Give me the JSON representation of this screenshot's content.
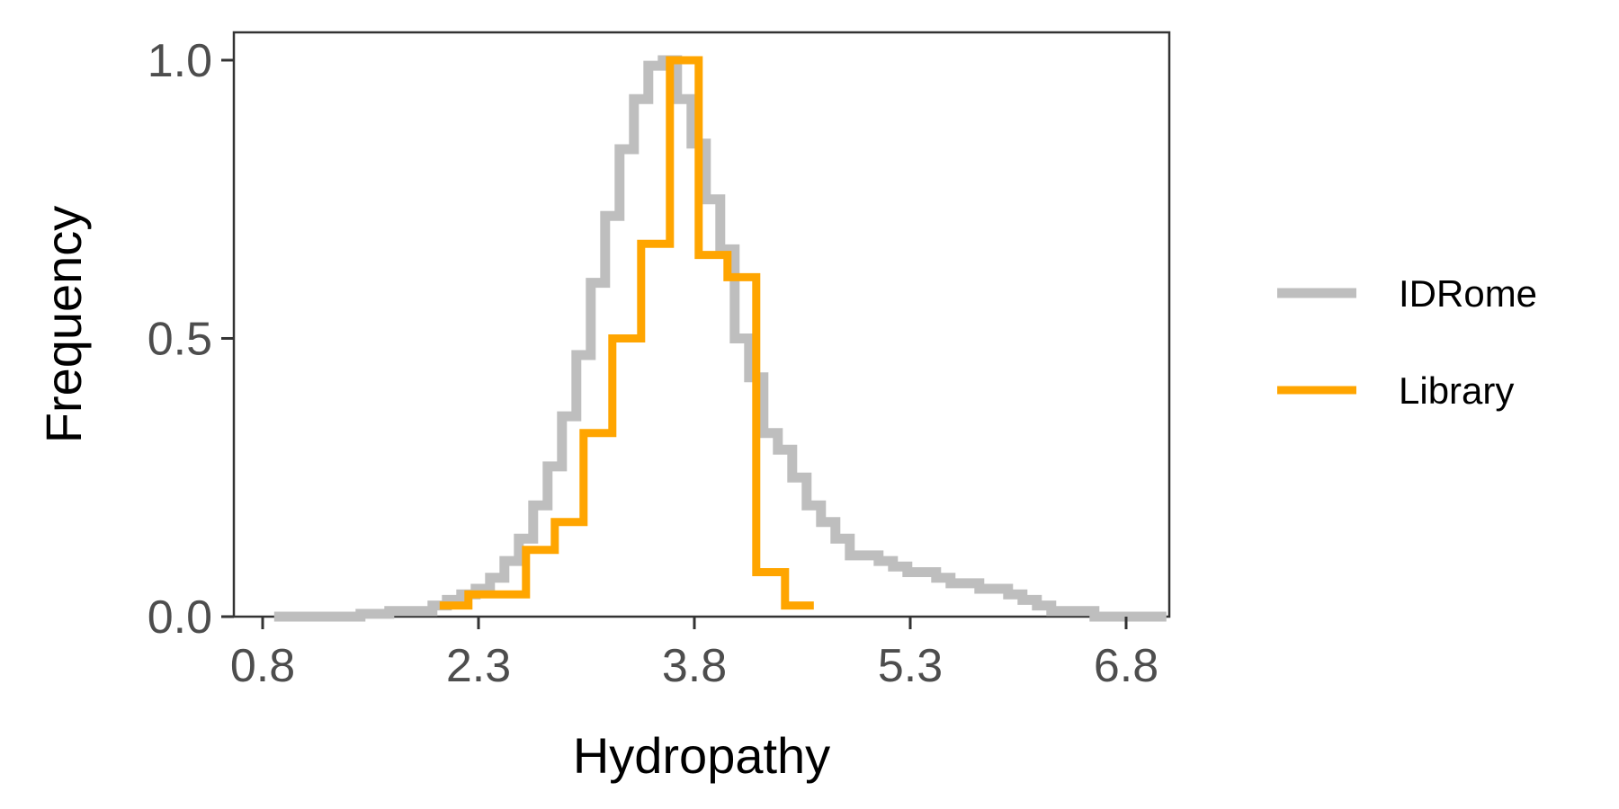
{
  "chart_data": {
    "type": "line",
    "subtype": "step histogram",
    "xlabel": "Hydropathy",
    "ylabel": "Frequency",
    "xlim": [
      0.6,
      7.1
    ],
    "ylim": [
      0,
      1.05
    ],
    "x_ticks": [
      0.8,
      2.3,
      3.8,
      5.3,
      6.8
    ],
    "x_tick_labels": [
      "0.8",
      "2.3",
      "3.8",
      "5.3",
      "6.8"
    ],
    "y_ticks": [
      0.0,
      0.5,
      1.0
    ],
    "y_tick_labels": [
      "0.0",
      "0.5",
      "1.0"
    ],
    "grid": false,
    "legend_position": "right",
    "series": [
      {
        "name": "IDRome",
        "color": "#bebebe",
        "x": [
          0.93,
          1.03,
          1.13,
          1.23,
          1.33,
          1.43,
          1.53,
          1.63,
          1.73,
          1.83,
          1.93,
          2.03,
          2.13,
          2.23,
          2.33,
          2.43,
          2.53,
          2.63,
          2.73,
          2.83,
          2.93,
          3.03,
          3.13,
          3.23,
          3.33,
          3.43,
          3.53,
          3.63,
          3.73,
          3.83,
          3.93,
          4.03,
          4.13,
          4.23,
          4.33,
          4.43,
          4.53,
          4.63,
          4.73,
          4.83,
          4.93,
          5.03,
          5.13,
          5.23,
          5.33,
          5.43,
          5.53,
          5.63,
          5.73,
          5.83,
          5.93,
          6.03,
          6.13,
          6.23,
          6.33,
          6.43,
          6.53,
          6.63,
          6.73,
          6.83,
          6.93,
          7.03
        ],
        "values": [
          0.0,
          0.0,
          0.0,
          0.0,
          0.0,
          0.0,
          0.005,
          0.005,
          0.01,
          0.01,
          0.01,
          0.02,
          0.03,
          0.04,
          0.05,
          0.07,
          0.1,
          0.14,
          0.2,
          0.27,
          0.36,
          0.47,
          0.6,
          0.72,
          0.84,
          0.93,
          0.99,
          1.0,
          0.93,
          0.85,
          0.75,
          0.66,
          0.5,
          0.43,
          0.33,
          0.3,
          0.25,
          0.2,
          0.17,
          0.14,
          0.11,
          0.11,
          0.1,
          0.09,
          0.08,
          0.08,
          0.07,
          0.06,
          0.06,
          0.05,
          0.05,
          0.04,
          0.03,
          0.02,
          0.01,
          0.01,
          0.01,
          0.0,
          0.0,
          0.0,
          0.0,
          0.0
        ]
      },
      {
        "name": "Library",
        "color": "#ffa500",
        "x": [
          2.13,
          2.33,
          2.53,
          2.73,
          2.93,
          3.13,
          3.33,
          3.53,
          3.73,
          3.93,
          4.13,
          4.33,
          4.53
        ],
        "values": [
          0.02,
          0.04,
          0.04,
          0.12,
          0.17,
          0.33,
          0.5,
          0.67,
          1.0,
          0.65,
          0.61,
          0.08,
          0.02
        ]
      }
    ]
  }
}
